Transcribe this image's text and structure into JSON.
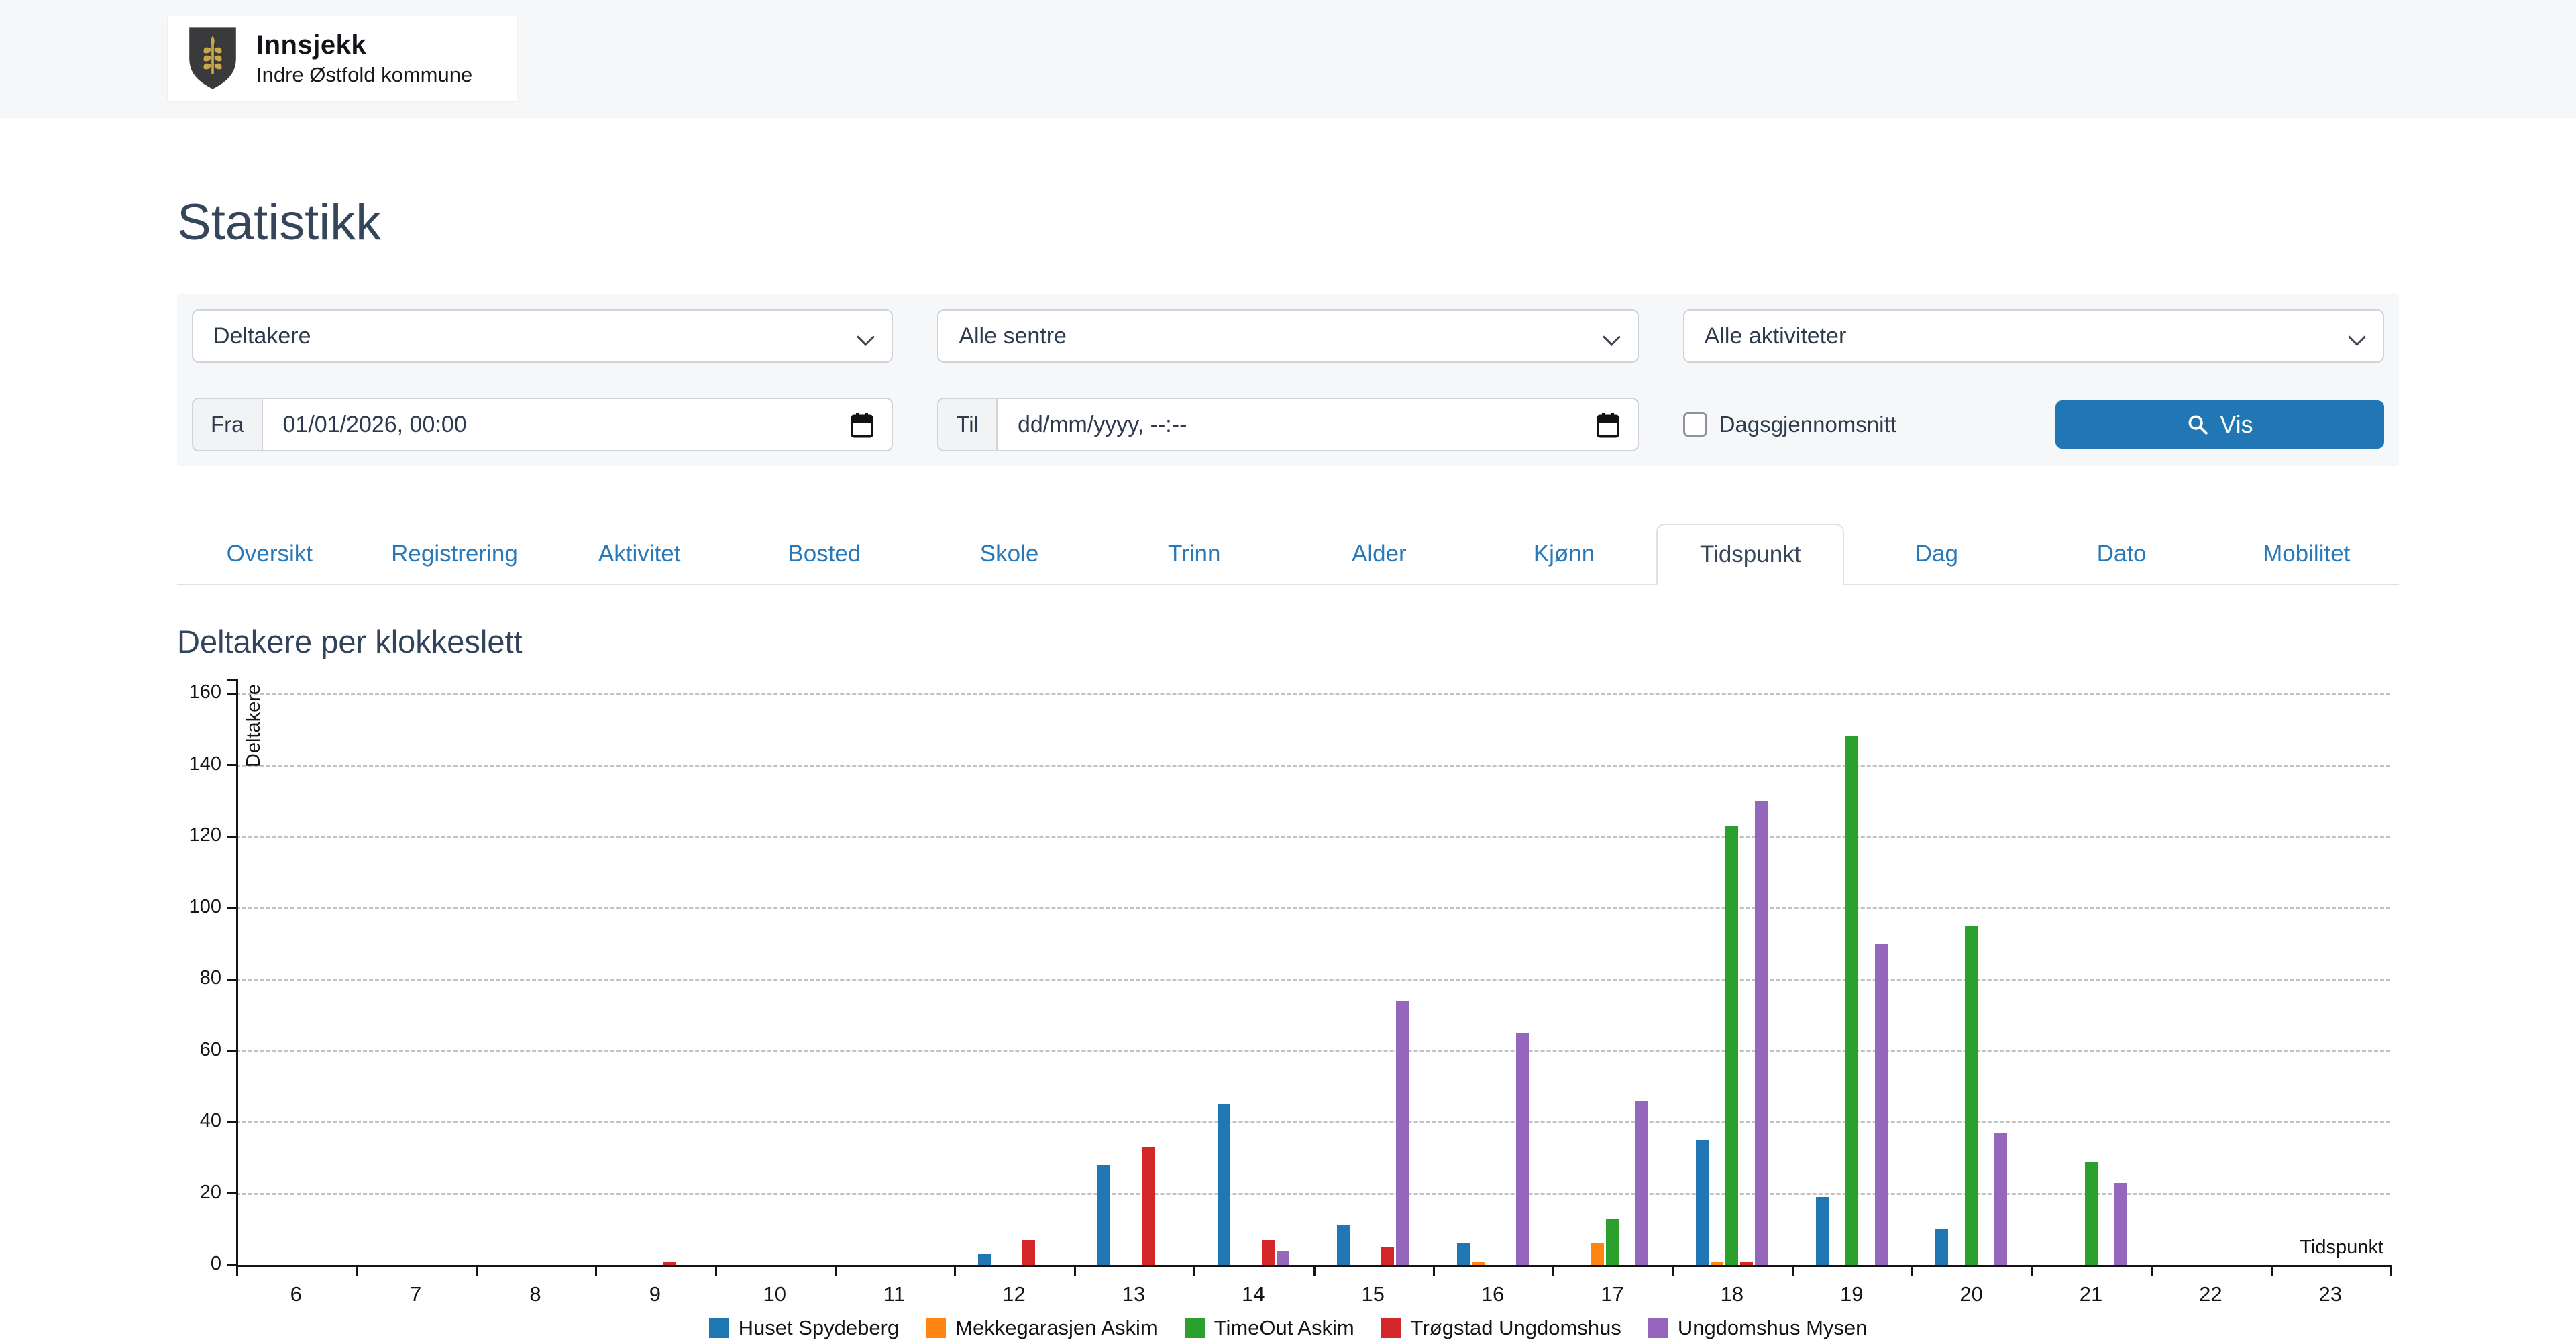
{
  "header": {
    "app_name": "Innsjekk",
    "app_subtitle": "Indre Østfold kommune"
  },
  "page": {
    "title": "Statistikk"
  },
  "filters": {
    "metric_value": "Deltakere",
    "centers_value": "Alle sentre",
    "activities_value": "Alle aktiviteter",
    "from_label": "Fra",
    "from_value": "01/01/2026, 00:00",
    "to_label": "Til",
    "to_placeholder": "dd/mm/yyyy, --:--",
    "day_average_label": "Dagsgjennomsnitt",
    "day_average_checked": false,
    "vis_label": "Vis",
    "accent_color": "#2176b4"
  },
  "tabs": {
    "items": [
      "Oversikt",
      "Registrering",
      "Aktivitet",
      "Bosted",
      "Skole",
      "Trinn",
      "Alder",
      "Kjønn",
      "Tidspunkt",
      "Dag",
      "Dato",
      "Mobilitet"
    ],
    "active_index": 8
  },
  "chart_data": {
    "type": "bar",
    "title": "Deltakere per klokkeslett",
    "xlabel": "Tidspunkt",
    "ylabel": "Deltakere",
    "ylim": [
      0,
      160
    ],
    "ytick_step": 20,
    "grid": "dashed-horizontal",
    "legend_position": "bottom",
    "categories": [
      "6",
      "7",
      "8",
      "9",
      "10",
      "11",
      "12",
      "13",
      "14",
      "15",
      "16",
      "17",
      "18",
      "19",
      "20",
      "21",
      "22",
      "23"
    ],
    "series": [
      {
        "name": "Huset Spydeberg",
        "color": "#2077b4",
        "values": [
          0,
          0,
          0,
          0,
          0,
          0,
          3,
          28,
          45,
          11,
          6,
          0,
          35,
          19,
          10,
          0,
          0,
          0
        ]
      },
      {
        "name": "Mekkegarasjen Askim",
        "color": "#ff8512",
        "values": [
          0,
          0,
          0,
          0,
          0,
          0,
          0,
          0,
          0,
          0,
          1,
          6,
          1,
          0,
          0,
          0,
          0,
          0
        ]
      },
      {
        "name": "TimeOut Askim",
        "color": "#2ca02c",
        "values": [
          0,
          0,
          0,
          0,
          0,
          0,
          0,
          0,
          0,
          0,
          0,
          13,
          123,
          148,
          95,
          29,
          0,
          0
        ]
      },
      {
        "name": "Trøgstad Ungdomshus",
        "color": "#d62728",
        "values": [
          0,
          0,
          0,
          1,
          0,
          0,
          7,
          33,
          7,
          5,
          0,
          0,
          1,
          0,
          0,
          0,
          0,
          0
        ]
      },
      {
        "name": "Ungdomshus Mysen",
        "color": "#9467bd",
        "values": [
          0,
          0,
          0,
          0,
          0,
          0,
          0,
          0,
          4,
          74,
          65,
          46,
          130,
          90,
          37,
          23,
          0,
          0
        ]
      }
    ]
  }
}
